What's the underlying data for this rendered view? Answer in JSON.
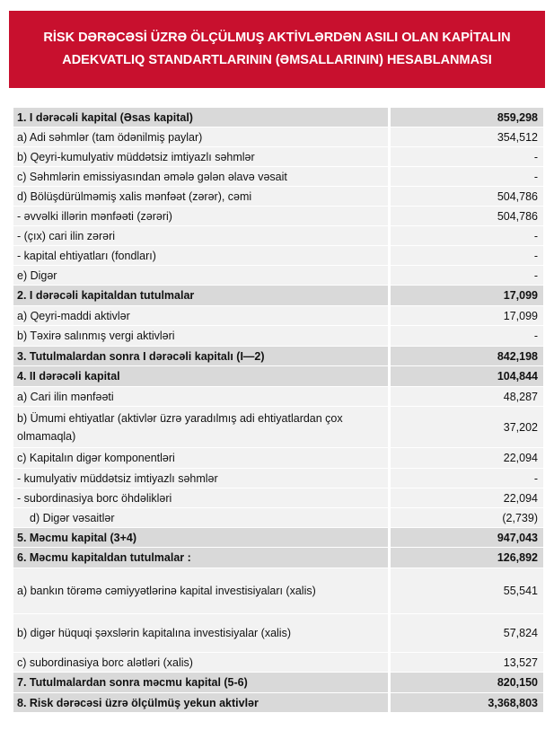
{
  "header": {
    "title": "RİSK DƏRƏCƏSİ ÜZRƏ ÖLÇÜLMUŞ AKTİVLƏRDƏN ASILI OLAN KAPİTALIN ADEKVATLIQ STANDARTLARININ (ƏMSALLARININ) HESABLANMASI"
  },
  "table": {
    "rows": [
      [
        "1. I dərəcəli kapital (Əsas kapital)",
        "859,298"
      ],
      [
        "a) Adi səhmlər (tam ödənilmiş paylar)",
        "354,512"
      ],
      [
        "b) Qeyri-kumulyativ müddətsiz imtiyazlı səhmlər",
        "-"
      ],
      [
        "c) Səhmlərin emissiyasından əmələ gələn  əlavə vəsait",
        "-"
      ],
      [
        "d)  Bölüşdürülməmiş xalis mənfəət (zərər), cəmi",
        "504,786"
      ],
      [
        " - əvvəlki illərin mənfəəti (zərəri)",
        "504,786"
      ],
      [
        " - (çıx) cari ilin zərəri",
        "-"
      ],
      [
        " - kapital ehtiyatları (fondları)",
        "-"
      ],
      [
        "e) Digər",
        "-"
      ],
      [
        "2. I dərəcəli kapitaldan  tutulmalar",
        "17,099"
      ],
      [
        "a) Qeyri-maddi aktivlər",
        "17,099"
      ],
      [
        "b) Təxirə salınmış vergi aktivləri",
        "-"
      ],
      [
        "3. Tutulmalardan  sonra I dərəcəli kapitalı (I—2)",
        "842,198"
      ],
      [
        "4. II dərəcəli  kapital",
        "104,844"
      ],
      [
        "a) Cari ilin mənfəəti",
        "48,287"
      ],
      [
        "b) Ümumi ehtiyatlar (aktivlər üzrə yaradılmış adi ehtiyatlardan çox olmamaqla)",
        "37,202"
      ],
      [
        "c) Kapitalın digər komponentləri",
        "22,094"
      ],
      [
        " - kumulyativ müddətsiz imtiyazlı səhmlər",
        "-"
      ],
      [
        " - subordinasiya borc öhdəlikləri",
        "22,094"
      ],
      [
        "d) Digər vəsaitlər",
        "(2,739)"
      ],
      [
        "5. Məcmu kapital (3+4)",
        "947,043"
      ],
      [
        "6. Məcmu kapitaldan tutulmalar :",
        "126,892"
      ],
      [
        "a) bankın törəmə cəmiyyətlərinə kapital investisiyaları (xalis)",
        "55,541"
      ],
      [
        "b) digər hüquqi şəxslərin kapitalına investisiyalar (xalis)",
        "57,824"
      ],
      [
        "c) subordinasiya borc alətləri (xalis)",
        "13,527"
      ],
      [
        "7. Tutulmalardan  sonra məcmu kapital (5-6)",
        "820,150"
      ],
      [
        "8. Risk dərəcəsi üzrə ölçülmüş  yekun aktivlər",
        "3,368,803"
      ]
    ]
  }
}
